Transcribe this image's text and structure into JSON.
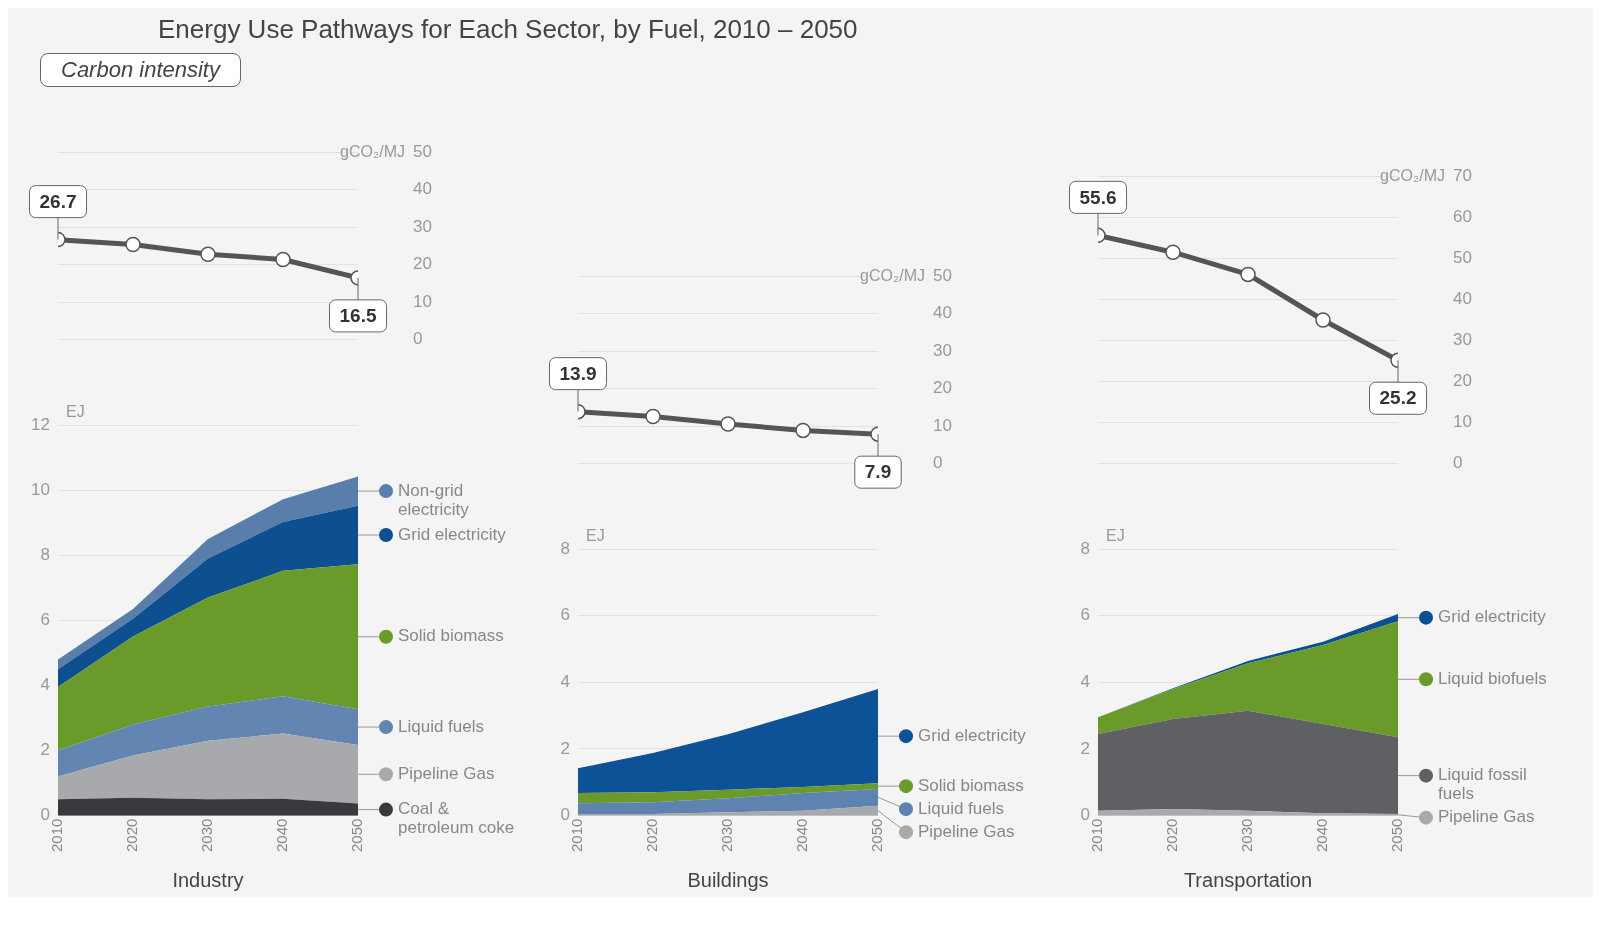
{
  "chart_data": [
    {
      "type": "line",
      "title": "Energy Use Pathways for Each Sector, by Fuel, 2010 – 2050",
      "subtitle": "Carbon intensity",
      "ylabel": "gCO₂/MJ",
      "x": [
        2010,
        2020,
        2030,
        2040,
        2050
      ],
      "values": [
        26.7,
        25.4,
        22.8,
        21.4,
        16.5
      ],
      "value_labels": [
        "26.7",
        null,
        null,
        null,
        "16.5"
      ],
      "color": "#555555",
      "marker": "circle",
      "xlim": [
        2010,
        2050
      ],
      "xticks": [
        2010,
        2020,
        2030,
        2040,
        2050
      ],
      "ylim": [
        0,
        50
      ],
      "yticks": [
        0,
        10,
        20,
        30,
        40,
        50
      ],
      "grid": "y",
      "tick_labels": "y"
    },
    {
      "type": "area",
      "xlabel": "Industry",
      "ylabel": "EJ",
      "x": [
        2010,
        2020,
        2030,
        2040,
        2050
      ],
      "stacked": true,
      "legend": "right",
      "grid": "y",
      "xlim": [
        2010,
        2050
      ],
      "xticks": [
        2010,
        2020,
        2030,
        2040,
        2050
      ],
      "ylim": [
        0,
        12
      ],
      "yticks": [
        0,
        2,
        4,
        6,
        8,
        10,
        12
      ],
      "series": [
        {
          "name": "Coal & petroleum coke",
          "color": "#3a3a3e",
          "values": [
            0.5,
            0.55,
            0.5,
            0.52,
            0.37
          ]
        },
        {
          "name": "Pipeline Gas",
          "color": "#a8a9ad",
          "values": [
            0.7,
            1.3,
            1.8,
            2.0,
            1.8
          ]
        },
        {
          "name": "Liquid fuels",
          "color": "#6285b2",
          "values": [
            0.8,
            0.95,
            1.05,
            1.15,
            1.1
          ]
        },
        {
          "name": "Solid biomass",
          "color": "#6a9a2a",
          "values": [
            1.95,
            2.7,
            3.35,
            3.85,
            4.45
          ]
        },
        {
          "name": "Grid electricity",
          "color": "#0e4f8f",
          "values": [
            0.55,
            0.55,
            1.2,
            1.5,
            1.8
          ]
        },
        {
          "name": "Non-grid electricity",
          "color": "#5a7eab",
          "values": [
            0.3,
            0.3,
            0.6,
            0.7,
            0.9
          ]
        }
      ]
    },
    {
      "type": "line",
      "ylabel": "gCO₂/MJ",
      "x": [
        2010,
        2020,
        2030,
        2040,
        2050
      ],
      "values": [
        13.9,
        12.6,
        10.6,
        8.9,
        7.9
      ],
      "value_labels": [
        "13.9",
        null,
        null,
        null,
        "7.9"
      ],
      "color": "#555555",
      "marker": "circle",
      "xlim": [
        2010,
        2050
      ],
      "xticks": [
        2010,
        2020,
        2030,
        2040,
        2050
      ],
      "ylim": [
        0,
        50
      ],
      "yticks": [
        0,
        10,
        20,
        30,
        40,
        50
      ],
      "grid": "y",
      "tick_labels": "y"
    },
    {
      "type": "area",
      "xlabel": "Buildings",
      "ylabel": "EJ",
      "x": [
        2010,
        2020,
        2030,
        2040,
        2050
      ],
      "stacked": true,
      "legend": "right",
      "grid": "y",
      "xlim": [
        2010,
        2050
      ],
      "xticks": [
        2010,
        2020,
        2030,
        2040,
        2050
      ],
      "ylim": [
        0,
        8
      ],
      "yticks": [
        0,
        2,
        4,
        6,
        8
      ],
      "series": [
        {
          "name": "Pipeline Gas",
          "color": "#a7a8ab",
          "values": [
            0.05,
            0.05,
            0.1,
            0.15,
            0.3
          ]
        },
        {
          "name": "Liquid fuels",
          "color": "#5f83b0",
          "values": [
            0.32,
            0.35,
            0.42,
            0.53,
            0.5
          ]
        },
        {
          "name": "Solid biomass",
          "color": "#6a9a2a",
          "values": [
            0.31,
            0.3,
            0.26,
            0.18,
            0.17
          ]
        },
        {
          "name": "Grid electricity",
          "color": "#0d5196",
          "values": [
            0.74,
            1.18,
            1.66,
            2.24,
            2.83
          ]
        }
      ]
    },
    {
      "type": "line",
      "ylabel": "gCO₂/MJ",
      "x": [
        2010,
        2020,
        2030,
        2040,
        2050
      ],
      "values": [
        55.6,
        51.5,
        46.1,
        35,
        25.2
      ],
      "value_labels": [
        "55.6",
        null,
        null,
        null,
        "25.2"
      ],
      "color": "#555555",
      "marker": "circle",
      "xlim": [
        2010,
        2050
      ],
      "xticks": [
        2010,
        2020,
        2030,
        2040,
        2050
      ],
      "ylim": [
        0,
        70
      ],
      "yticks": [
        0,
        10,
        20,
        30,
        40,
        50,
        60,
        70
      ],
      "grid": "y",
      "tick_labels": "y"
    },
    {
      "type": "area",
      "xlabel": "Transportation",
      "ylabel": "EJ",
      "x": [
        2010,
        2020,
        2030,
        2040,
        2050
      ],
      "stacked": true,
      "legend": "right",
      "grid": "y",
      "xlim": [
        2010,
        2050
      ],
      "xticks": [
        2010,
        2020,
        2030,
        2040,
        2050
      ],
      "ylim": [
        0,
        8
      ],
      "yticks": [
        0,
        2,
        4,
        6,
        8
      ],
      "series": [
        {
          "name": "Pipeline Gas",
          "color": "#a9aaae",
          "values": [
            0.15,
            0.2,
            0.15,
            0.07,
            0.05
          ]
        },
        {
          "name": "Liquid fossil fuels",
          "color": "#5f6064",
          "values": [
            2.3,
            2.7,
            3.0,
            2.68,
            2.3
          ]
        },
        {
          "name": "Liquid biofuels",
          "color": "#6a9a2a",
          "values": [
            0.5,
            0.9,
            1.42,
            2.37,
            3.48
          ]
        },
        {
          "name": "Grid electricity",
          "color": "#0d4f95",
          "values": [
            0,
            0.02,
            0.07,
            0.1,
            0.22
          ]
        }
      ]
    }
  ]
}
